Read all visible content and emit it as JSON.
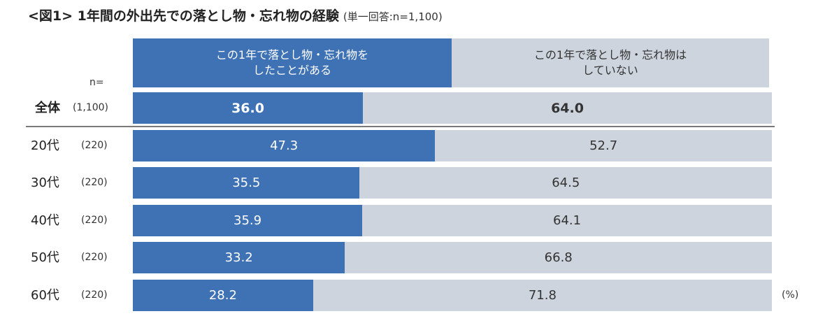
{
  "title": {
    "main": "<図1> 1年間の外出先での落とし物・忘れ物の経験",
    "sub": "(単一回答:n=1,100)"
  },
  "legend": {
    "yes": "この1年で落とし物・忘れ物を\nしたことがある",
    "no": "この1年で落とし物・忘れ物は\nしていない"
  },
  "n_header": "n=",
  "unit": "(%)",
  "colors": {
    "yes": "#3f72b5",
    "no": "#cdd4dd"
  },
  "rows": [
    {
      "label": "全体",
      "n": "(1,100)",
      "yes": 36.0,
      "no": 64.0,
      "yes_text": "36.0",
      "no_text": "64.0"
    },
    {
      "label": "20代",
      "n": "(220)",
      "yes": 47.3,
      "no": 52.7,
      "yes_text": "47.3",
      "no_text": "52.7"
    },
    {
      "label": "30代",
      "n": "(220)",
      "yes": 35.5,
      "no": 64.5,
      "yes_text": "35.5",
      "no_text": "64.5"
    },
    {
      "label": "40代",
      "n": "(220)",
      "yes": 35.9,
      "no": 64.1,
      "yes_text": "35.9",
      "no_text": "64.1"
    },
    {
      "label": "50代",
      "n": "(220)",
      "yes": 33.2,
      "no": 66.8,
      "yes_text": "33.2",
      "no_text": "66.8"
    },
    {
      "label": "60代",
      "n": "(220)",
      "yes": 28.2,
      "no": 71.8,
      "yes_text": "28.2",
      "no_text": "71.8"
    }
  ],
  "chart_data": {
    "type": "bar",
    "orientation": "horizontal",
    "stacked": "100%",
    "title": "<図1> 1年間の外出先での落とし物・忘れ物の経験 (単一回答:n=1,100)",
    "categories": [
      "全体",
      "20代",
      "30代",
      "40代",
      "50代",
      "60代"
    ],
    "n": [
      1100,
      220,
      220,
      220,
      220,
      220
    ],
    "series": [
      {
        "name": "この1年で落とし物・忘れ物をしたことがある",
        "color": "#3f72b5",
        "values": [
          36.0,
          47.3,
          35.5,
          35.9,
          33.2,
          28.2
        ]
      },
      {
        "name": "この1年で落とし物・忘れ物はしていない",
        "color": "#cdd4dd",
        "values": [
          64.0,
          52.7,
          64.5,
          64.1,
          66.8,
          71.8
        ]
      }
    ],
    "xlabel": "",
    "ylabel": "",
    "unit": "%",
    "xlim": [
      0,
      100
    ],
    "grid": false,
    "legend_position": "top"
  }
}
